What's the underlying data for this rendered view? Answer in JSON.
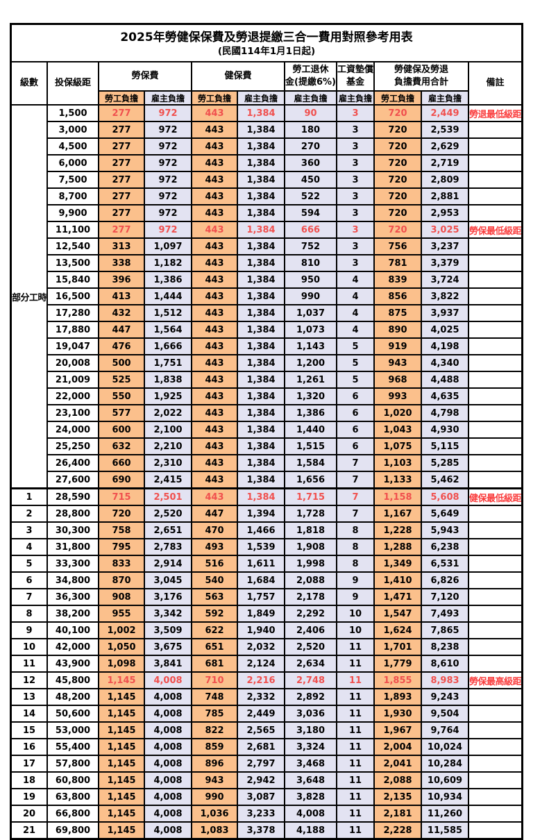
{
  "title": "2025年勞健保保費及勞退提繳三合一費用對照參考用表",
  "subtitle": "(民國114年1月1日起)",
  "colors": {
    "employee_bg": "#fbc08c",
    "employer_bg": "#e3e3f2",
    "highlight_text": "#f0504e",
    "remark_text": "#fa3e3e",
    "border": "#000000"
  },
  "header": {
    "level": "級數",
    "bracket": "投保級距",
    "labor_insurance": "勞保費",
    "health_insurance": "健保費",
    "pension_line1": "勞工退休",
    "pension_line2": "金(提繳6%)",
    "wage_fund_line1": "工資墊償",
    "wage_fund_line2": "基金",
    "total_line1": "勞健保及勞退",
    "total_line2": "負擔費用合計",
    "remark": "備註",
    "employee_share": "勞工負擔",
    "employer_share": "雇主負擔"
  },
  "part_time_label": "部分工時",
  "rows": [
    {
      "level": "",
      "bracket": "1,500",
      "li_emp": "277",
      "li_er": "972",
      "hi_emp": "443",
      "hi_er": "1,384",
      "pension": "90",
      "fund": "3",
      "tot_emp": "720",
      "tot_er": "2,449",
      "remark": "勞退最低級距",
      "red": true
    },
    {
      "level": "",
      "bracket": "3,000",
      "li_emp": "277",
      "li_er": "972",
      "hi_emp": "443",
      "hi_er": "1,384",
      "pension": "180",
      "fund": "3",
      "tot_emp": "720",
      "tot_er": "2,539",
      "remark": "",
      "red": false
    },
    {
      "level": "",
      "bracket": "4,500",
      "li_emp": "277",
      "li_er": "972",
      "hi_emp": "443",
      "hi_er": "1,384",
      "pension": "270",
      "fund": "3",
      "tot_emp": "720",
      "tot_er": "2,629",
      "remark": "",
      "red": false
    },
    {
      "level": "",
      "bracket": "6,000",
      "li_emp": "277",
      "li_er": "972",
      "hi_emp": "443",
      "hi_er": "1,384",
      "pension": "360",
      "fund": "3",
      "tot_emp": "720",
      "tot_er": "2,719",
      "remark": "",
      "red": false
    },
    {
      "level": "",
      "bracket": "7,500",
      "li_emp": "277",
      "li_er": "972",
      "hi_emp": "443",
      "hi_er": "1,384",
      "pension": "450",
      "fund": "3",
      "tot_emp": "720",
      "tot_er": "2,809",
      "remark": "",
      "red": false
    },
    {
      "level": "",
      "bracket": "8,700",
      "li_emp": "277",
      "li_er": "972",
      "hi_emp": "443",
      "hi_er": "1,384",
      "pension": "522",
      "fund": "3",
      "tot_emp": "720",
      "tot_er": "2,881",
      "remark": "",
      "red": false
    },
    {
      "level": "",
      "bracket": "9,900",
      "li_emp": "277",
      "li_er": "972",
      "hi_emp": "443",
      "hi_er": "1,384",
      "pension": "594",
      "fund": "3",
      "tot_emp": "720",
      "tot_er": "2,953",
      "remark": "",
      "red": false
    },
    {
      "level": "",
      "bracket": "11,100",
      "li_emp": "277",
      "li_er": "972",
      "hi_emp": "443",
      "hi_er": "1,384",
      "pension": "666",
      "fund": "3",
      "tot_emp": "720",
      "tot_er": "3,025",
      "remark": "勞保最低級距",
      "red": true
    },
    {
      "level": "",
      "bracket": "12,540",
      "li_emp": "313",
      "li_er": "1,097",
      "hi_emp": "443",
      "hi_er": "1,384",
      "pension": "752",
      "fund": "3",
      "tot_emp": "756",
      "tot_er": "3,237",
      "remark": "",
      "red": false
    },
    {
      "level": "",
      "bracket": "13,500",
      "li_emp": "338",
      "li_er": "1,182",
      "hi_emp": "443",
      "hi_er": "1,384",
      "pension": "810",
      "fund": "3",
      "tot_emp": "781",
      "tot_er": "3,379",
      "remark": "",
      "red": false
    },
    {
      "level": "",
      "bracket": "15,840",
      "li_emp": "396",
      "li_er": "1,386",
      "hi_emp": "443",
      "hi_er": "1,384",
      "pension": "950",
      "fund": "4",
      "tot_emp": "839",
      "tot_er": "3,724",
      "remark": "",
      "red": false
    },
    {
      "level": "",
      "bracket": "16,500",
      "li_emp": "413",
      "li_er": "1,444",
      "hi_emp": "443",
      "hi_er": "1,384",
      "pension": "990",
      "fund": "4",
      "tot_emp": "856",
      "tot_er": "3,822",
      "remark": "",
      "red": false
    },
    {
      "level": "",
      "bracket": "17,280",
      "li_emp": "432",
      "li_er": "1,512",
      "hi_emp": "443",
      "hi_er": "1,384",
      "pension": "1,037",
      "fund": "4",
      "tot_emp": "875",
      "tot_er": "3,937",
      "remark": "",
      "red": false
    },
    {
      "level": "",
      "bracket": "17,880",
      "li_emp": "447",
      "li_er": "1,564",
      "hi_emp": "443",
      "hi_er": "1,384",
      "pension": "1,073",
      "fund": "4",
      "tot_emp": "890",
      "tot_er": "4,025",
      "remark": "",
      "red": false
    },
    {
      "level": "",
      "bracket": "19,047",
      "li_emp": "476",
      "li_er": "1,666",
      "hi_emp": "443",
      "hi_er": "1,384",
      "pension": "1,143",
      "fund": "5",
      "tot_emp": "919",
      "tot_er": "4,198",
      "remark": "",
      "red": false
    },
    {
      "level": "",
      "bracket": "20,008",
      "li_emp": "500",
      "li_er": "1,751",
      "hi_emp": "443",
      "hi_er": "1,384",
      "pension": "1,200",
      "fund": "5",
      "tot_emp": "943",
      "tot_er": "4,340",
      "remark": "",
      "red": false
    },
    {
      "level": "",
      "bracket": "21,009",
      "li_emp": "525",
      "li_er": "1,838",
      "hi_emp": "443",
      "hi_er": "1,384",
      "pension": "1,261",
      "fund": "5",
      "tot_emp": "968",
      "tot_er": "4,488",
      "remark": "",
      "red": false
    },
    {
      "level": "",
      "bracket": "22,000",
      "li_emp": "550",
      "li_er": "1,925",
      "hi_emp": "443",
      "hi_er": "1,384",
      "pension": "1,320",
      "fund": "6",
      "tot_emp": "993",
      "tot_er": "4,635",
      "remark": "",
      "red": false
    },
    {
      "level": "",
      "bracket": "23,100",
      "li_emp": "577",
      "li_er": "2,022",
      "hi_emp": "443",
      "hi_er": "1,384",
      "pension": "1,386",
      "fund": "6",
      "tot_emp": "1,020",
      "tot_er": "4,798",
      "remark": "",
      "red": false
    },
    {
      "level": "",
      "bracket": "24,000",
      "li_emp": "600",
      "li_er": "2,100",
      "hi_emp": "443",
      "hi_er": "1,384",
      "pension": "1,440",
      "fund": "6",
      "tot_emp": "1,043",
      "tot_er": "4,930",
      "remark": "",
      "red": false
    },
    {
      "level": "",
      "bracket": "25,250",
      "li_emp": "632",
      "li_er": "2,210",
      "hi_emp": "443",
      "hi_er": "1,384",
      "pension": "1,515",
      "fund": "6",
      "tot_emp": "1,075",
      "tot_er": "5,115",
      "remark": "",
      "red": false
    },
    {
      "level": "",
      "bracket": "26,400",
      "li_emp": "660",
      "li_er": "2,310",
      "hi_emp": "443",
      "hi_er": "1,384",
      "pension": "1,584",
      "fund": "7",
      "tot_emp": "1,103",
      "tot_er": "5,285",
      "remark": "",
      "red": false
    },
    {
      "level": "",
      "bracket": "27,600",
      "li_emp": "690",
      "li_er": "2,415",
      "hi_emp": "443",
      "hi_er": "1,384",
      "pension": "1,656",
      "fund": "7",
      "tot_emp": "1,133",
      "tot_er": "5,462",
      "remark": "",
      "red": false
    },
    {
      "level": "1",
      "bracket": "28,590",
      "li_emp": "715",
      "li_er": "2,501",
      "hi_emp": "443",
      "hi_er": "1,384",
      "pension": "1,715",
      "fund": "7",
      "tot_emp": "1,158",
      "tot_er": "5,608",
      "remark": "健保最低級距",
      "red": true,
      "thick": true
    },
    {
      "level": "2",
      "bracket": "28,800",
      "li_emp": "720",
      "li_er": "2,520",
      "hi_emp": "447",
      "hi_er": "1,394",
      "pension": "1,728",
      "fund": "7",
      "tot_emp": "1,167",
      "tot_er": "5,649",
      "remark": "",
      "red": false
    },
    {
      "level": "3",
      "bracket": "30,300",
      "li_emp": "758",
      "li_er": "2,651",
      "hi_emp": "470",
      "hi_er": "1,466",
      "pension": "1,818",
      "fund": "8",
      "tot_emp": "1,228",
      "tot_er": "5,943",
      "remark": "",
      "red": false
    },
    {
      "level": "4",
      "bracket": "31,800",
      "li_emp": "795",
      "li_er": "2,783",
      "hi_emp": "493",
      "hi_er": "1,539",
      "pension": "1,908",
      "fund": "8",
      "tot_emp": "1,288",
      "tot_er": "6,238",
      "remark": "",
      "red": false
    },
    {
      "level": "5",
      "bracket": "33,300",
      "li_emp": "833",
      "li_er": "2,914",
      "hi_emp": "516",
      "hi_er": "1,611",
      "pension": "1,998",
      "fund": "8",
      "tot_emp": "1,349",
      "tot_er": "6,531",
      "remark": "",
      "red": false
    },
    {
      "level": "6",
      "bracket": "34,800",
      "li_emp": "870",
      "li_er": "3,045",
      "hi_emp": "540",
      "hi_er": "1,684",
      "pension": "2,088",
      "fund": "9",
      "tot_emp": "1,410",
      "tot_er": "6,826",
      "remark": "",
      "red": false
    },
    {
      "level": "7",
      "bracket": "36,300",
      "li_emp": "908",
      "li_er": "3,176",
      "hi_emp": "563",
      "hi_er": "1,757",
      "pension": "2,178",
      "fund": "9",
      "tot_emp": "1,471",
      "tot_er": "7,120",
      "remark": "",
      "red": false
    },
    {
      "level": "8",
      "bracket": "38,200",
      "li_emp": "955",
      "li_er": "3,342",
      "hi_emp": "592",
      "hi_er": "1,849",
      "pension": "2,292",
      "fund": "10",
      "tot_emp": "1,547",
      "tot_er": "7,493",
      "remark": "",
      "red": false
    },
    {
      "level": "9",
      "bracket": "40,100",
      "li_emp": "1,002",
      "li_er": "3,509",
      "hi_emp": "622",
      "hi_er": "1,940",
      "pension": "2,406",
      "fund": "10",
      "tot_emp": "1,624",
      "tot_er": "7,865",
      "remark": "",
      "red": false
    },
    {
      "level": "10",
      "bracket": "42,000",
      "li_emp": "1,050",
      "li_er": "3,675",
      "hi_emp": "651",
      "hi_er": "2,032",
      "pension": "2,520",
      "fund": "11",
      "tot_emp": "1,701",
      "tot_er": "8,238",
      "remark": "",
      "red": false
    },
    {
      "level": "11",
      "bracket": "43,900",
      "li_emp": "1,098",
      "li_er": "3,841",
      "hi_emp": "681",
      "hi_er": "2,124",
      "pension": "2,634",
      "fund": "11",
      "tot_emp": "1,779",
      "tot_er": "8,610",
      "remark": "",
      "red": false
    },
    {
      "level": "12",
      "bracket": "45,800",
      "li_emp": "1,145",
      "li_er": "4,008",
      "hi_emp": "710",
      "hi_er": "2,216",
      "pension": "2,748",
      "fund": "11",
      "tot_emp": "1,855",
      "tot_er": "8,983",
      "remark": "勞保最高級距",
      "red": true
    },
    {
      "level": "13",
      "bracket": "48,200",
      "li_emp": "1,145",
      "li_er": "4,008",
      "hi_emp": "748",
      "hi_er": "2,332",
      "pension": "2,892",
      "fund": "11",
      "tot_emp": "1,893",
      "tot_er": "9,243",
      "remark": "",
      "red": false
    },
    {
      "level": "14",
      "bracket": "50,600",
      "li_emp": "1,145",
      "li_er": "4,008",
      "hi_emp": "785",
      "hi_er": "2,449",
      "pension": "3,036",
      "fund": "11",
      "tot_emp": "1,930",
      "tot_er": "9,504",
      "remark": "",
      "red": false
    },
    {
      "level": "15",
      "bracket": "53,000",
      "li_emp": "1,145",
      "li_er": "4,008",
      "hi_emp": "822",
      "hi_er": "2,565",
      "pension": "3,180",
      "fund": "11",
      "tot_emp": "1,967",
      "tot_er": "9,764",
      "remark": "",
      "red": false
    },
    {
      "level": "16",
      "bracket": "55,400",
      "li_emp": "1,145",
      "li_er": "4,008",
      "hi_emp": "859",
      "hi_er": "2,681",
      "pension": "3,324",
      "fund": "11",
      "tot_emp": "2,004",
      "tot_er": "10,024",
      "remark": "",
      "red": false
    },
    {
      "level": "17",
      "bracket": "57,800",
      "li_emp": "1,145",
      "li_er": "4,008",
      "hi_emp": "896",
      "hi_er": "2,797",
      "pension": "3,468",
      "fund": "11",
      "tot_emp": "2,041",
      "tot_er": "10,284",
      "remark": "",
      "red": false
    },
    {
      "level": "18",
      "bracket": "60,800",
      "li_emp": "1,145",
      "li_er": "4,008",
      "hi_emp": "943",
      "hi_er": "2,942",
      "pension": "3,648",
      "fund": "11",
      "tot_emp": "2,088",
      "tot_er": "10,609",
      "remark": "",
      "red": false
    },
    {
      "level": "19",
      "bracket": "63,800",
      "li_emp": "1,145",
      "li_er": "4,008",
      "hi_emp": "990",
      "hi_er": "3,087",
      "pension": "3,828",
      "fund": "11",
      "tot_emp": "2,135",
      "tot_er": "10,934",
      "remark": "",
      "red": false
    },
    {
      "level": "20",
      "bracket": "66,800",
      "li_emp": "1,145",
      "li_er": "4,008",
      "hi_emp": "1,036",
      "hi_er": "3,233",
      "pension": "4,008",
      "fund": "11",
      "tot_emp": "2,181",
      "tot_er": "11,260",
      "remark": "",
      "red": false
    },
    {
      "level": "21",
      "bracket": "69,800",
      "li_emp": "1,145",
      "li_er": "4,008",
      "hi_emp": "1,083",
      "hi_er": "3,378",
      "pension": "4,188",
      "fund": "11",
      "tot_emp": "2,228",
      "tot_er": "11,585",
      "remark": "",
      "red": false
    }
  ]
}
